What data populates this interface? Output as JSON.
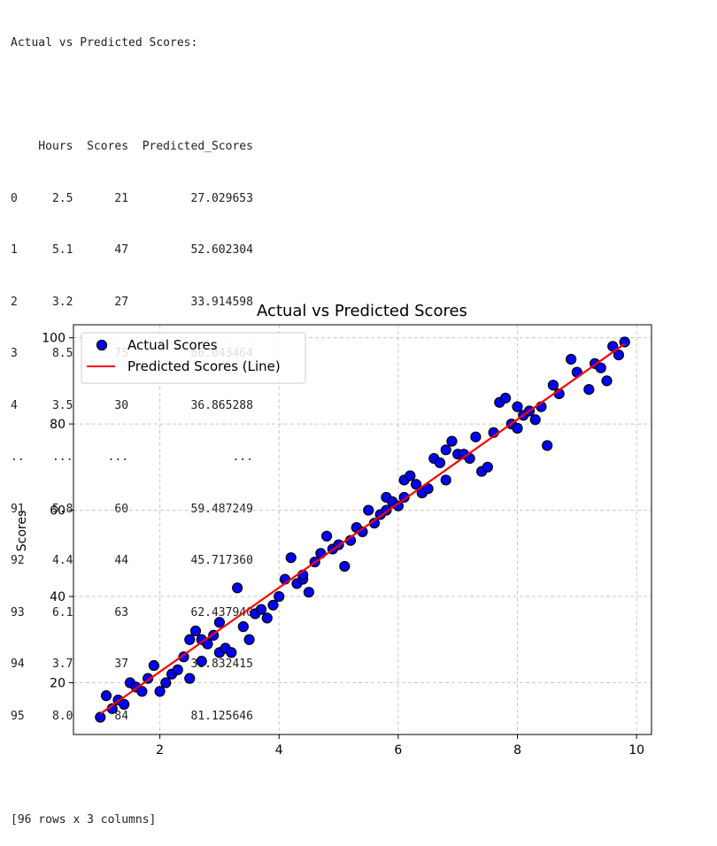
{
  "console": {
    "heading": "Actual vs Predicted Scores:",
    "table_header": "    Hours  Scores  Predicted_Scores",
    "rows": [
      "0     2.5      21         27.029653",
      "1     5.1      47         52.602304",
      "2     3.2      27         33.914598",
      "3     8.5      75         86.043464",
      "4     3.5      30         36.865288",
      "..    ...     ...               ...",
      "91    5.8      60         59.487249",
      "92    4.4      44         45.717360",
      "93    6.1      63         62.437940",
      "94    3.7      37         38.832415",
      "95    8.0      84         81.125646"
    ],
    "footer": "[96 rows x 3 columns]"
  },
  "chart_data": {
    "type": "scatter",
    "title": "Actual vs Predicted Scores",
    "xlabel": "",
    "ylabel": "Scores",
    "xlim": [
      0.55,
      10.25
    ],
    "ylim": [
      8,
      103
    ],
    "xticks": [
      2,
      4,
      6,
      8,
      10
    ],
    "yticks": [
      20,
      40,
      60,
      80,
      100
    ],
    "grid": true,
    "legend_position": "top-left",
    "series": [
      {
        "name": "Actual Scores",
        "kind": "scatter",
        "color": "#0000ff",
        "edge_color": "#000000",
        "points": [
          [
            1.0,
            12
          ],
          [
            1.1,
            17
          ],
          [
            1.2,
            14
          ],
          [
            1.3,
            16
          ],
          [
            1.4,
            15
          ],
          [
            1.5,
            20
          ],
          [
            1.6,
            19
          ],
          [
            1.7,
            18
          ],
          [
            1.8,
            21
          ],
          [
            1.9,
            24
          ],
          [
            2.0,
            18
          ],
          [
            2.1,
            20
          ],
          [
            2.2,
            22
          ],
          [
            2.3,
            23
          ],
          [
            2.4,
            26
          ],
          [
            2.5,
            21
          ],
          [
            2.5,
            30
          ],
          [
            2.6,
            32
          ],
          [
            2.7,
            25
          ],
          [
            2.7,
            30
          ],
          [
            2.8,
            29
          ],
          [
            2.9,
            31
          ],
          [
            3.0,
            27
          ],
          [
            3.0,
            34
          ],
          [
            3.1,
            28
          ],
          [
            3.2,
            27
          ],
          [
            3.3,
            42
          ],
          [
            3.4,
            33
          ],
          [
            3.5,
            30
          ],
          [
            3.6,
            36
          ],
          [
            3.7,
            37
          ],
          [
            3.8,
            35
          ],
          [
            3.9,
            38
          ],
          [
            4.0,
            40
          ],
          [
            4.1,
            44
          ],
          [
            4.2,
            49
          ],
          [
            4.3,
            43
          ],
          [
            4.4,
            44
          ],
          [
            4.4,
            45
          ],
          [
            4.5,
            41
          ],
          [
            4.6,
            48
          ],
          [
            4.7,
            50
          ],
          [
            4.8,
            54
          ],
          [
            4.9,
            51
          ],
          [
            5.0,
            52
          ],
          [
            5.1,
            47
          ],
          [
            5.2,
            53
          ],
          [
            5.3,
            56
          ],
          [
            5.4,
            55
          ],
          [
            5.5,
            60
          ],
          [
            5.6,
            57
          ],
          [
            5.7,
            59
          ],
          [
            5.8,
            60
          ],
          [
            5.8,
            63
          ],
          [
            5.9,
            62
          ],
          [
            6.0,
            61
          ],
          [
            6.1,
            63
          ],
          [
            6.1,
            67
          ],
          [
            6.2,
            68
          ],
          [
            6.3,
            66
          ],
          [
            6.4,
            64
          ],
          [
            6.5,
            65
          ],
          [
            6.6,
            72
          ],
          [
            6.7,
            71
          ],
          [
            6.8,
            67
          ],
          [
            6.8,
            74
          ],
          [
            6.9,
            76
          ],
          [
            7.0,
            73
          ],
          [
            7.1,
            73
          ],
          [
            7.2,
            72
          ],
          [
            7.3,
            77
          ],
          [
            7.4,
            69
          ],
          [
            7.5,
            70
          ],
          [
            7.6,
            78
          ],
          [
            7.7,
            85
          ],
          [
            7.8,
            86
          ],
          [
            7.9,
            80
          ],
          [
            8.0,
            79
          ],
          [
            8.0,
            84
          ],
          [
            8.1,
            82
          ],
          [
            8.2,
            83
          ],
          [
            8.3,
            81
          ],
          [
            8.4,
            84
          ],
          [
            8.5,
            75
          ],
          [
            8.6,
            89
          ],
          [
            8.7,
            87
          ],
          [
            8.9,
            95
          ],
          [
            9.0,
            92
          ],
          [
            9.2,
            88
          ],
          [
            9.3,
            94
          ],
          [
            9.4,
            93
          ],
          [
            9.5,
            90
          ],
          [
            9.6,
            98
          ],
          [
            9.7,
            96
          ],
          [
            9.8,
            99
          ]
        ]
      },
      {
        "name": "Predicted Scores (Line)",
        "kind": "line",
        "color": "#ff0000",
        "points": [
          [
            1.0,
            12.8
          ],
          [
            9.8,
            98.6
          ]
        ]
      }
    ]
  }
}
